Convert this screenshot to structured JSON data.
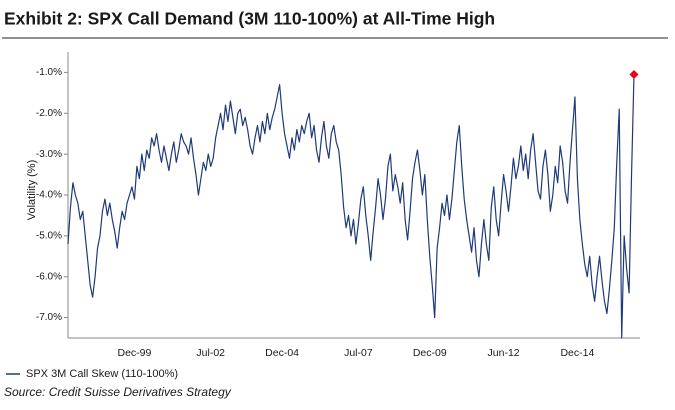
{
  "chart_data": {
    "type": "line",
    "title": "Exhibit 2: SPX Call Demand (3M 110-100%) at All-Time High",
    "ylabel": "Volatility (%)",
    "source": "Source: Credit Suisse Derivatives Strategy",
    "ylim": [
      -7.5,
      -0.5
    ],
    "yticks": [
      {
        "value": -1,
        "label": "-1.0%"
      },
      {
        "value": -2,
        "label": "-2.0%"
      },
      {
        "value": -3,
        "label": "-3.0%"
      },
      {
        "value": -4,
        "label": "-4.0%"
      },
      {
        "value": -5,
        "label": "-5.0%"
      },
      {
        "value": -6,
        "label": "-6.0%"
      },
      {
        "value": -7,
        "label": "-7.0%"
      }
    ],
    "last_point_marker_color": "#e8001c",
    "categories": [
      null,
      null,
      null,
      null,
      null,
      null,
      null,
      null,
      null,
      null,
      null,
      null,
      null,
      null,
      null,
      null,
      null,
      null,
      null,
      null,
      null,
      null,
      null,
      null,
      null,
      null,
      null,
      "Dec-99",
      null,
      null,
      null,
      null,
      null,
      null,
      null,
      null,
      null,
      null,
      null,
      null,
      null,
      null,
      null,
      null,
      null,
      null,
      null,
      null,
      null,
      null,
      null,
      null,
      null,
      null,
      null,
      null,
      null,
      null,
      "Jul-02",
      null,
      null,
      null,
      null,
      null,
      null,
      null,
      null,
      null,
      null,
      null,
      null,
      null,
      null,
      null,
      null,
      null,
      null,
      null,
      null,
      null,
      null,
      null,
      null,
      null,
      null,
      null,
      null,
      "Dec-04",
      null,
      null,
      null,
      null,
      null,
      null,
      null,
      null,
      null,
      null,
      null,
      null,
      null,
      null,
      null,
      null,
      null,
      null,
      null,
      null,
      null,
      null,
      null,
      null,
      null,
      null,
      null,
      null,
      null,
      null,
      "Jul-07",
      null,
      null,
      null,
      null,
      null,
      null,
      null,
      null,
      null,
      null,
      null,
      null,
      null,
      null,
      null,
      null,
      null,
      null,
      null,
      null,
      null,
      null,
      null,
      null,
      null,
      null,
      null,
      null,
      "Dec-09",
      null,
      null,
      null,
      null,
      null,
      null,
      null,
      null,
      null,
      null,
      null,
      null,
      null,
      null,
      null,
      null,
      null,
      null,
      null,
      null,
      null,
      null,
      null,
      null,
      null,
      null,
      null,
      null,
      null,
      "Jun-12",
      null,
      null,
      null,
      null,
      null,
      null,
      null,
      null,
      null,
      null,
      null,
      null,
      null,
      null,
      null,
      null,
      null,
      null,
      null,
      null,
      null,
      null,
      null,
      null,
      null,
      null,
      null,
      null,
      null,
      "Dec-14",
      null,
      null,
      null,
      null,
      null,
      null,
      null,
      null,
      null,
      null,
      null,
      null,
      null,
      null,
      null,
      null,
      null,
      null,
      null,
      null,
      null,
      null,
      null
    ],
    "series": [
      {
        "name": "SPX 3M Call Skew (110-100%)",
        "color": "#1f3a7a",
        "values": [
          -5.2,
          -4.3,
          -3.7,
          -4.0,
          -4.2,
          -4.6,
          -4.4,
          -5.0,
          -5.6,
          -6.2,
          -6.5,
          -6.0,
          -5.3,
          -5.0,
          -4.4,
          -4.1,
          -4.5,
          -4.2,
          -4.6,
          -4.9,
          -5.3,
          -4.8,
          -4.4,
          -4.6,
          -4.2,
          -4.0,
          -3.8,
          -4.1,
          -3.3,
          -3.6,
          -3.0,
          -3.4,
          -2.9,
          -3.1,
          -2.6,
          -2.8,
          -2.5,
          -2.9,
          -3.2,
          -2.8,
          -3.1,
          -3.4,
          -3.0,
          -2.7,
          -3.2,
          -2.9,
          -2.5,
          -2.7,
          -2.8,
          -3.0,
          -2.6,
          -3.1,
          -3.5,
          -4.0,
          -3.6,
          -3.2,
          -3.4,
          -3.0,
          -3.3,
          -3.1,
          -2.6,
          -2.3,
          -2.0,
          -2.4,
          -1.8,
          -2.2,
          -1.7,
          -2.1,
          -2.5,
          -2.0,
          -1.9,
          -2.3,
          -2.1,
          -2.4,
          -2.8,
          -3.0,
          -2.6,
          -2.3,
          -2.7,
          -2.2,
          -2.5,
          -2.0,
          -2.4,
          -2.1,
          -1.9,
          -1.6,
          -1.3,
          -2.0,
          -2.5,
          -2.8,
          -3.1,
          -2.6,
          -2.9,
          -2.4,
          -2.7,
          -2.3,
          -2.5,
          -2.2,
          -2.0,
          -2.6,
          -2.3,
          -2.9,
          -3.2,
          -2.6,
          -2.2,
          -2.8,
          -3.1,
          -2.5,
          -2.3,
          -2.7,
          -2.9,
          -3.5,
          -4.3,
          -4.8,
          -4.5,
          -5.0,
          -4.6,
          -5.2,
          -4.7,
          -4.1,
          -3.8,
          -4.5,
          -5.0,
          -5.6,
          -4.9,
          -4.3,
          -3.6,
          -4.0,
          -4.6,
          -4.1,
          -3.3,
          -3.0,
          -3.9,
          -3.5,
          -3.8,
          -4.2,
          -3.7,
          -4.6,
          -5.1,
          -4.4,
          -3.6,
          -3.2,
          -2.9,
          -3.4,
          -4.0,
          -3.5,
          -4.6,
          -5.5,
          -6.2,
          -7.0,
          -5.3,
          -4.8,
          -4.2,
          -4.5,
          -4.0,
          -4.6,
          -4.1,
          -3.4,
          -2.7,
          -2.3,
          -3.3,
          -4.1,
          -4.6,
          -5.0,
          -5.4,
          -4.8,
          -5.6,
          -6.0,
          -5.2,
          -4.6,
          -5.2,
          -5.6,
          -4.3,
          -3.8,
          -4.6,
          -5.0,
          -4.2,
          -3.5,
          -3.9,
          -4.4,
          -3.8,
          -3.1,
          -3.6,
          -3.3,
          -2.8,
          -3.4,
          -3.0,
          -3.6,
          -2.9,
          -2.5,
          -3.2,
          -3.9,
          -4.1,
          -3.3,
          -2.9,
          -3.5,
          -4.4,
          -4.0,
          -3.3,
          -3.7,
          -2.8,
          -3.2,
          -3.9,
          -4.2,
          -3.2,
          -2.4,
          -1.6,
          -3.6,
          -4.6,
          -5.2,
          -5.7,
          -6.0,
          -5.5,
          -6.2,
          -6.6,
          -6.0,
          -5.5,
          -6.1,
          -6.6,
          -6.9,
          -6.3,
          -5.6,
          -4.8,
          -3.2,
          -1.9,
          -7.5,
          -5.0,
          -5.8,
          -6.4,
          -3.5,
          -1.05
        ]
      }
    ]
  }
}
